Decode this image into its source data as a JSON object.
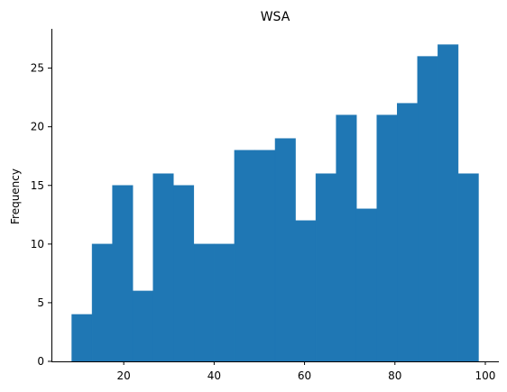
{
  "chart_data": {
    "type": "bar",
    "subtype": "histogram",
    "title": "WSA",
    "xlabel": "",
    "ylabel": "Frequency",
    "bins": [
      {
        "start": 8.5,
        "end": 13.0,
        "count": 4
      },
      {
        "start": 13.0,
        "end": 17.5,
        "count": 10
      },
      {
        "start": 17.5,
        "end": 22.0,
        "count": 15
      },
      {
        "start": 22.0,
        "end": 26.5,
        "count": 6
      },
      {
        "start": 26.5,
        "end": 31.0,
        "count": 16
      },
      {
        "start": 31.0,
        "end": 35.5,
        "count": 15
      },
      {
        "start": 35.5,
        "end": 40.0,
        "count": 10
      },
      {
        "start": 40.0,
        "end": 44.5,
        "count": 10
      },
      {
        "start": 44.5,
        "end": 49.0,
        "count": 18
      },
      {
        "start": 49.0,
        "end": 53.5,
        "count": 18
      },
      {
        "start": 53.5,
        "end": 58.0,
        "count": 19
      },
      {
        "start": 58.0,
        "end": 62.5,
        "count": 12
      },
      {
        "start": 62.5,
        "end": 67.0,
        "count": 16
      },
      {
        "start": 67.0,
        "end": 71.5,
        "count": 21
      },
      {
        "start": 71.5,
        "end": 76.0,
        "count": 13
      },
      {
        "start": 76.0,
        "end": 80.5,
        "count": 21
      },
      {
        "start": 80.5,
        "end": 85.0,
        "count": 22
      },
      {
        "start": 85.0,
        "end": 89.5,
        "count": 26
      },
      {
        "start": 89.5,
        "end": 94.0,
        "count": 27
      },
      {
        "start": 94.0,
        "end": 98.5,
        "count": 16
      }
    ],
    "x_ticks": [
      20,
      40,
      60,
      80,
      100
    ],
    "y_ticks": [
      0,
      5,
      10,
      15,
      20,
      25
    ],
    "xlim": [
      4.0,
      103.0
    ],
    "ylim": [
      0,
      28.35
    ],
    "grid": false,
    "color": "#1f77b4"
  }
}
